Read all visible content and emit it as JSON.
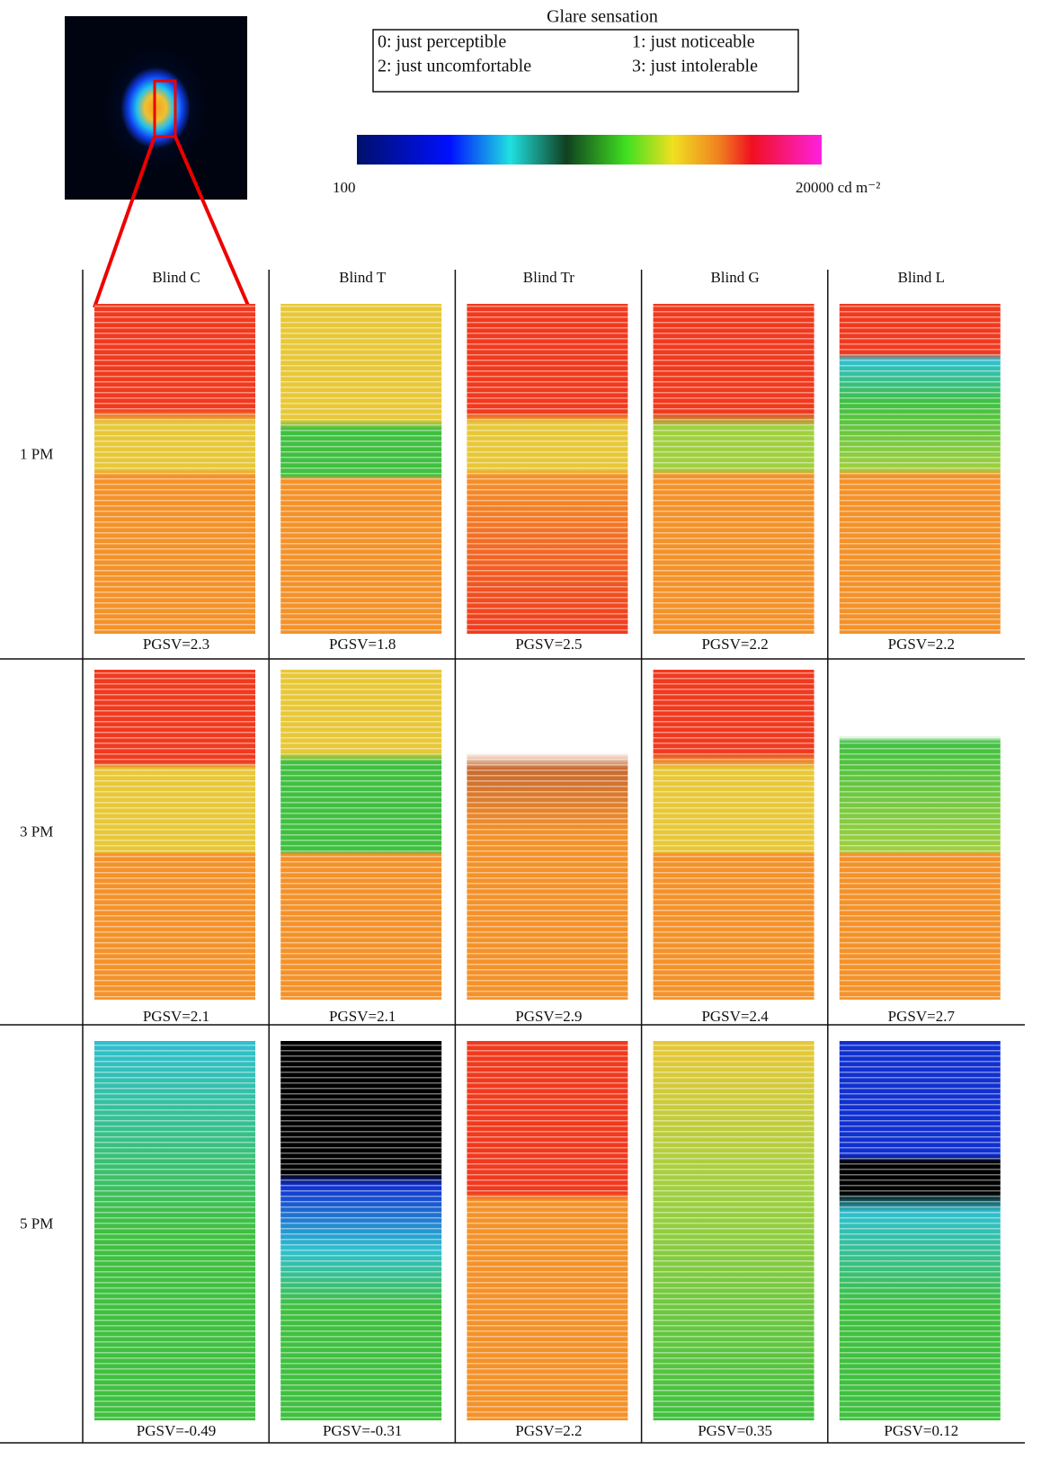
{
  "figure": {
    "legend": {
      "title": "Glare sensation",
      "entries": [
        "0: just perceptible",
        "1: just noticeable",
        "2: just uncomfortable",
        "3: just intolerable"
      ]
    },
    "scale": {
      "min_label": "100",
      "max_label": "20000 cd m⁻²"
    }
  },
  "table": {
    "columns": [
      "Blind C",
      "Blind T",
      "Blind Tr",
      "Blind G",
      "Blind L"
    ],
    "rows": [
      {
        "time": "1 PM",
        "values": [
          "PGSV=2.3",
          "PGSV=1.8",
          "PGSV=2.5",
          "PGSV=2.2",
          "PGSV=2.2"
        ]
      },
      {
        "time": "3 PM",
        "values": [
          "PGSV=2.1",
          "PGSV=2.1",
          "PGSV=2.9",
          "PGSV=2.4",
          "PGSV=2.7"
        ]
      },
      {
        "time": "5 PM",
        "values": [
          "PGSV=-0.49",
          "PGSV=-0.31",
          "PGSV=2.2",
          "PGSV=0.35",
          "PGSV=0.12"
        ]
      }
    ]
  }
}
